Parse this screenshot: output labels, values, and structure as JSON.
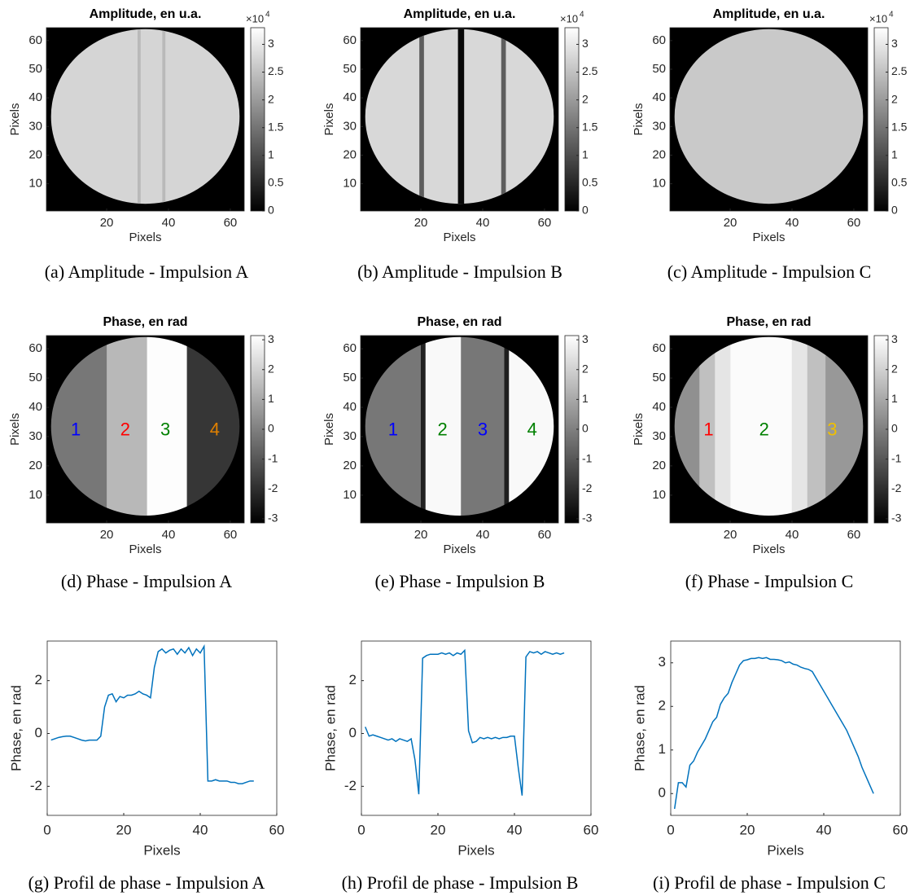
{
  "chart_data": [
    {
      "type": "image",
      "title": "Amplitude, en u.a.",
      "xlabel": "Pixels",
      "ylabel": "Pixels",
      "caption": "(a) Amplitude - Impulsion A",
      "xlim": [
        0.5,
        64.5
      ],
      "ylim": [
        0.5,
        64.5
      ],
      "xticks": [
        20,
        40,
        60
      ],
      "yticks": [
        10,
        20,
        30,
        40,
        50,
        60
      ],
      "clim": [
        0,
        3.3
      ],
      "cticks": [
        0,
        0.5,
        1,
        1.5,
        2,
        2.5,
        3
      ],
      "cscale": {
        "base": "×10",
        "exponent": "4"
      },
      "disk": {
        "x": 32.5,
        "y": 33.5,
        "r": 30.5
      },
      "regions": [
        {
          "x": [
            0.5,
            64.5
          ],
          "level": 2.75
        },
        {
          "x": [
            30,
            31
          ],
          "level": 2.4
        },
        {
          "x": [
            38,
            39
          ],
          "level": 2.4
        }
      ],
      "annotations": []
    },
    {
      "type": "image",
      "title": "Amplitude, en u.a.",
      "xlabel": "Pixels",
      "ylabel": "Pixels",
      "caption": "(b) Amplitude - Impulsion B",
      "xlim": [
        0.5,
        64.5
      ],
      "ylim": [
        0.5,
        64.5
      ],
      "xticks": [
        20,
        40,
        60
      ],
      "yticks": [
        10,
        20,
        30,
        40,
        50,
        60
      ],
      "clim": [
        0,
        3.3
      ],
      "cticks": [
        0,
        0.5,
        1,
        1.5,
        2,
        2.5,
        3
      ],
      "cscale": {
        "base": "×10",
        "exponent": "4"
      },
      "disk": {
        "x": 32.5,
        "y": 33.5,
        "r": 30.5
      },
      "regions": [
        {
          "x": [
            0.5,
            64.5
          ],
          "level": 2.8
        },
        {
          "x": [
            19.5,
            21
          ],
          "level": 1.2
        },
        {
          "x": [
            32,
            34
          ],
          "level": 0.1
        },
        {
          "x": [
            46,
            47.5
          ],
          "level": 1.2
        }
      ],
      "annotations": []
    },
    {
      "type": "image",
      "title": "Amplitude, en u.a.",
      "xlabel": "Pixels",
      "ylabel": "Pixels",
      "caption": "(c) Amplitude - Impulsion C",
      "xlim": [
        0.5,
        64.5
      ],
      "ylim": [
        0.5,
        64.5
      ],
      "xticks": [
        20,
        40,
        60
      ],
      "yticks": [
        10,
        20,
        30,
        40,
        50,
        60
      ],
      "clim": [
        0,
        3.3
      ],
      "cticks": [
        0,
        0.5,
        1,
        1.5,
        2,
        2.5,
        3
      ],
      "cscale": {
        "base": "×10",
        "exponent": "4"
      },
      "disk": {
        "x": 32.5,
        "y": 33.5,
        "r": 30.5
      },
      "regions": [
        {
          "x": [
            0.5,
            64.5
          ],
          "level": 2.6
        }
      ],
      "annotations": []
    },
    {
      "type": "image",
      "title": "Phase, en rad",
      "xlabel": "Pixels",
      "ylabel": "Pixels",
      "caption": "(d) Phase - Impulsion A",
      "xlim": [
        0.5,
        64.5
      ],
      "ylim": [
        0.5,
        64.5
      ],
      "xticks": [
        20,
        40,
        60
      ],
      "yticks": [
        10,
        20,
        30,
        40,
        50,
        60
      ],
      "clim": [
        -3.14,
        3.14
      ],
      "cticks": [
        -3,
        -2,
        -1,
        0,
        1,
        2,
        3
      ],
      "disk": {
        "x": 32.5,
        "y": 33.5,
        "r": 30.5
      },
      "regions": [
        {
          "x": [
            0.5,
            20
          ],
          "level": -0.2
        },
        {
          "x": [
            20,
            33
          ],
          "level": 1.4
        },
        {
          "x": [
            33,
            46
          ],
          "level": 3.1
        },
        {
          "x": [
            46,
            64.5
          ],
          "level": -1.8
        }
      ],
      "annotations": [
        {
          "text": "1",
          "x": 10,
          "y": 32,
          "color": "#0000ff"
        },
        {
          "text": "2",
          "x": 26,
          "y": 32,
          "color": "#ff0000"
        },
        {
          "text": "3",
          "x": 39,
          "y": 32,
          "color": "#008000"
        },
        {
          "text": "4",
          "x": 55,
          "y": 32,
          "color": "#e08000"
        }
      ]
    },
    {
      "type": "image",
      "title": "Phase, en rad",
      "xlabel": "Pixels",
      "ylabel": "Pixels",
      "caption": "(e) Phase - Impulsion B",
      "xlim": [
        0.5,
        64.5
      ],
      "ylim": [
        0.5,
        64.5
      ],
      "xticks": [
        20,
        40,
        60
      ],
      "yticks": [
        10,
        20,
        30,
        40,
        50,
        60
      ],
      "clim": [
        -3.14,
        3.14
      ],
      "cticks": [
        -3,
        -2,
        -1,
        0,
        1,
        2,
        3
      ],
      "disk": {
        "x": 32.5,
        "y": 33.5,
        "r": 30.5
      },
      "regions": [
        {
          "x": [
            0.5,
            20
          ],
          "level": -0.2
        },
        {
          "x": [
            20,
            21.5
          ],
          "level": -2.3
        },
        {
          "x": [
            21.5,
            33
          ],
          "level": 3.0
        },
        {
          "x": [
            33,
            47
          ],
          "level": -0.2
        },
        {
          "x": [
            47,
            48.5
          ],
          "level": -2.4
        },
        {
          "x": [
            48.5,
            64.5
          ],
          "level": 3.0
        }
      ],
      "annotations": [
        {
          "text": "1",
          "x": 11,
          "y": 32,
          "color": "#0000ff"
        },
        {
          "text": "2",
          "x": 27,
          "y": 32,
          "color": "#008000"
        },
        {
          "text": "3",
          "x": 40,
          "y": 32,
          "color": "#0000ff"
        },
        {
          "text": "4",
          "x": 56,
          "y": 32,
          "color": "#008000"
        }
      ]
    },
    {
      "type": "image",
      "title": "Phase, en rad",
      "xlabel": "Pixels",
      "ylabel": "Pixels",
      "caption": "(f) Phase - Impulsion C",
      "xlim": [
        0.5,
        64.5
      ],
      "ylim": [
        0.5,
        64.5
      ],
      "xticks": [
        20,
        40,
        60
      ],
      "yticks": [
        10,
        20,
        30,
        40,
        50,
        60
      ],
      "clim": [
        -3.14,
        3.14
      ],
      "cticks": [
        -3,
        -2,
        -1,
        0,
        1,
        2,
        3
      ],
      "disk": {
        "x": 32.5,
        "y": 33.5,
        "r": 30.5
      },
      "regions": [
        {
          "x": [
            0.5,
            10
          ],
          "level": 0.4
        },
        {
          "x": [
            10,
            15
          ],
          "level": 1.6
        },
        {
          "x": [
            15,
            20
          ],
          "level": 2.5
        },
        {
          "x": [
            20,
            40
          ],
          "level": 3.05
        },
        {
          "x": [
            40,
            45
          ],
          "level": 2.5
        },
        {
          "x": [
            45,
            51
          ],
          "level": 1.6
        },
        {
          "x": [
            51,
            64.5
          ],
          "level": 0.6
        }
      ],
      "annotations": [
        {
          "text": "1",
          "x": 13,
          "y": 32,
          "color": "#ff0000"
        },
        {
          "text": "2",
          "x": 31,
          "y": 32,
          "color": "#008000"
        },
        {
          "text": "3",
          "x": 53,
          "y": 32,
          "color": "#f0c000"
        }
      ]
    },
    {
      "type": "line",
      "xlabel": "Pixels",
      "ylabel": "Phase, en rad",
      "caption": "(g) Profil de phase - Impulsion A",
      "xlim": [
        0,
        60
      ],
      "ylim": [
        -3.1,
        3.5
      ],
      "xticks": [
        0,
        20,
        40,
        60
      ],
      "yticks": [
        -2,
        0,
        2
      ],
      "color": "#0072bd",
      "x": [
        1,
        2,
        3,
        4,
        5,
        6,
        7,
        8,
        9,
        10,
        11,
        12,
        13,
        14,
        15,
        16,
        17,
        18,
        19,
        20,
        21,
        22,
        23,
        24,
        25,
        26,
        27,
        28,
        29,
        30,
        31,
        32,
        33,
        34,
        35,
        36,
        37,
        38,
        39,
        40,
        41,
        42,
        43,
        44,
        45,
        46,
        47,
        48,
        49,
        50,
        51,
        52,
        53,
        54
      ],
      "values": [
        -0.25,
        -0.2,
        -0.15,
        -0.12,
        -0.1,
        -0.1,
        -0.15,
        -0.2,
        -0.25,
        -0.28,
        -0.25,
        -0.25,
        -0.25,
        -0.1,
        1.0,
        1.45,
        1.5,
        1.2,
        1.4,
        1.35,
        1.45,
        1.45,
        1.5,
        1.6,
        1.5,
        1.45,
        1.35,
        2.5,
        3.1,
        3.2,
        3.05,
        3.15,
        3.2,
        3.0,
        3.2,
        3.05,
        3.25,
        2.95,
        3.2,
        3.05,
        3.3,
        -1.8,
        -1.8,
        -1.75,
        -1.8,
        -1.8,
        -1.8,
        -1.85,
        -1.85,
        -1.9,
        -1.9,
        -1.85,
        -1.8,
        -1.8
      ]
    },
    {
      "type": "line",
      "xlabel": "Pixels",
      "ylabel": "Phase, en rad",
      "caption": "(h) Profil de phase - Impulsion B",
      "xlim": [
        0,
        60
      ],
      "ylim": [
        -3.1,
        3.5
      ],
      "xticks": [
        0,
        20,
        40,
        60
      ],
      "yticks": [
        -2,
        0,
        2
      ],
      "color": "#0072bd",
      "x": [
        1,
        2,
        3,
        4,
        5,
        6,
        7,
        8,
        9,
        10,
        11,
        12,
        13,
        14,
        15,
        16,
        17,
        18,
        19,
        20,
        21,
        22,
        23,
        24,
        25,
        26,
        27,
        28,
        29,
        30,
        31,
        32,
        33,
        34,
        35,
        36,
        37,
        38,
        39,
        40,
        41,
        42,
        43,
        44,
        45,
        46,
        47,
        48,
        49,
        50,
        51,
        52,
        53
      ],
      "values": [
        0.25,
        -0.1,
        -0.05,
        -0.1,
        -0.15,
        -0.2,
        -0.25,
        -0.2,
        -0.3,
        -0.2,
        -0.25,
        -0.3,
        -0.2,
        -1.0,
        -2.3,
        2.85,
        2.95,
        3.0,
        3.0,
        3.0,
        3.05,
        3.0,
        3.05,
        2.95,
        3.05,
        3.0,
        3.15,
        0.1,
        -0.35,
        -0.3,
        -0.15,
        -0.2,
        -0.15,
        -0.2,
        -0.15,
        -0.2,
        -0.15,
        -0.15,
        -0.1,
        -0.1,
        -1.3,
        -2.35,
        2.9,
        3.1,
        3.05,
        3.1,
        3.0,
        3.1,
        3.05,
        3.0,
        3.05,
        3.0,
        3.05
      ]
    },
    {
      "type": "line",
      "xlabel": "Pixels",
      "ylabel": "Phase, en rad",
      "caption": "(i) Profil de phase - Impulsion C",
      "xlim": [
        0,
        60
      ],
      "ylim": [
        -0.5,
        3.5
      ],
      "xticks": [
        0,
        20,
        40,
        60
      ],
      "yticks": [
        0,
        1,
        2,
        3
      ],
      "color": "#0072bd",
      "x": [
        1,
        2,
        3,
        4,
        5,
        6,
        7,
        8,
        9,
        10,
        11,
        12,
        13,
        14,
        15,
        16,
        17,
        18,
        19,
        20,
        21,
        22,
        23,
        24,
        25,
        26,
        27,
        28,
        29,
        30,
        31,
        32,
        33,
        34,
        35,
        36,
        37,
        38,
        39,
        40,
        41,
        42,
        43,
        44,
        45,
        46,
        47,
        48,
        49,
        50,
        51,
        52,
        53
      ],
      "values": [
        -0.35,
        0.25,
        0.25,
        0.15,
        0.65,
        0.75,
        0.95,
        1.1,
        1.25,
        1.45,
        1.65,
        1.75,
        2.05,
        2.2,
        2.3,
        2.55,
        2.75,
        2.95,
        3.05,
        3.07,
        3.1,
        3.1,
        3.12,
        3.1,
        3.12,
        3.08,
        3.08,
        3.07,
        3.05,
        3.0,
        3.02,
        2.97,
        2.95,
        2.9,
        2.87,
        2.85,
        2.8,
        2.65,
        2.5,
        2.35,
        2.2,
        2.05,
        1.9,
        1.75,
        1.6,
        1.45,
        1.25,
        1.05,
        0.85,
        0.6,
        0.4,
        0.2,
        0.0
      ]
    }
  ]
}
